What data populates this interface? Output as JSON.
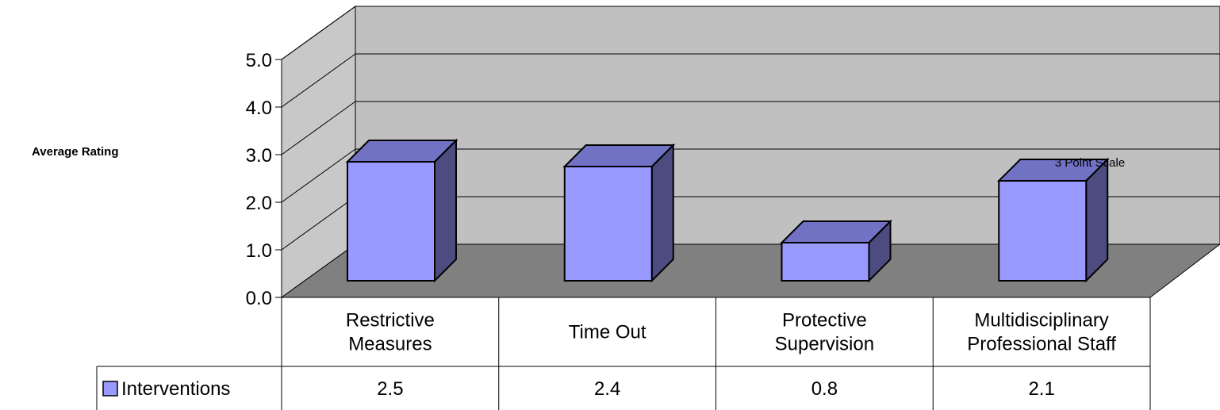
{
  "chart_data": {
    "type": "bar",
    "style": "3d-column-with-data-table",
    "ylabel": "Average Rating",
    "annotation": "3 Point Scale",
    "ylim": [
      0,
      5
    ],
    "y_ticks": [
      "0.0",
      "1.0",
      "2.0",
      "3.0",
      "4.0",
      "5.0"
    ],
    "categories": [
      [
        "Restrictive",
        "Measures"
      ],
      [
        "Time Out"
      ],
      [
        "Protective",
        "Supervision"
      ],
      [
        "Multidisciplinary",
        "Professional Staff"
      ]
    ],
    "series": [
      {
        "name": "Interventions",
        "values": [
          2.5,
          2.4,
          0.8,
          2.1
        ],
        "value_labels": [
          "2.5",
          "2.4",
          "0.8",
          "2.1"
        ]
      }
    ],
    "grid": true,
    "legend": "data-table",
    "colors": {
      "bar_front": "#9999FF",
      "bar_top": "#7272C4",
      "bar_side": "#4C4C80",
      "back_wall": "#C0C0C0",
      "floor": "#808080",
      "left_wall": "#C8C8C8"
    }
  }
}
